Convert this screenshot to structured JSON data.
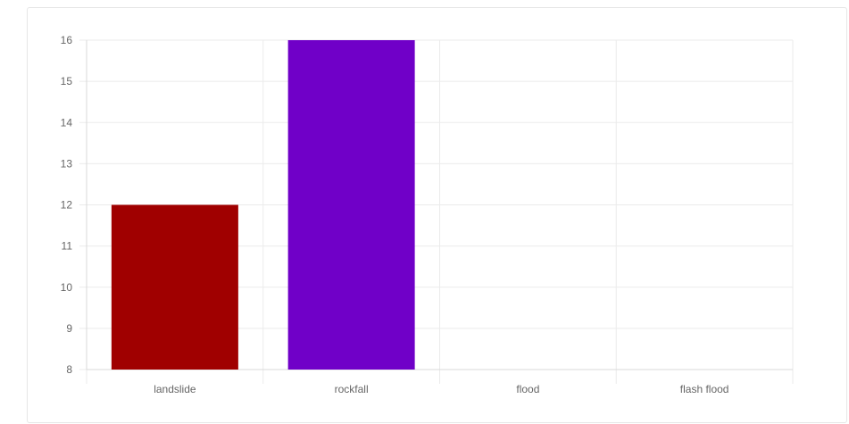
{
  "chart_data": {
    "type": "bar",
    "title": "",
    "xlabel": "",
    "ylabel": "",
    "categories": [
      "landslide",
      "rockfall",
      "flood",
      "flash flood"
    ],
    "values": [
      12,
      16,
      null,
      null
    ],
    "ylim": [
      8,
      16
    ],
    "yticks": [
      "16",
      "15",
      "14",
      "13",
      "12",
      "11",
      "10",
      "9",
      "8"
    ],
    "colors": [
      "#a00000",
      "#7000c8",
      null,
      null
    ],
    "grid": true,
    "legend": "none"
  }
}
